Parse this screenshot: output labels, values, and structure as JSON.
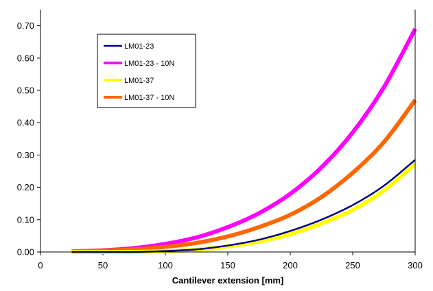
{
  "chart_data": {
    "type": "line",
    "title": "",
    "xlabel": "Cantilever extension [mm]",
    "ylabel": "",
    "xlim": [
      0,
      300
    ],
    "ylim": [
      0,
      0.75
    ],
    "x_ticks": [
      "0",
      "50",
      "100",
      "150",
      "200",
      "250",
      "300"
    ],
    "y_ticks": [
      "0.00",
      "0.10",
      "0.20",
      "0.30",
      "0.40",
      "0.50",
      "0.60",
      "0.70"
    ],
    "grid": false,
    "legend_position": "upper-left",
    "series": [
      {
        "name": "LM01-23",
        "color": "#000080",
        "weight": "thin",
        "x": [
          25,
          50,
          75,
          100,
          125,
          150,
          175,
          200,
          225,
          250,
          275,
          300
        ],
        "y": [
          0.0,
          0.0,
          0.0,
          0.003,
          0.008,
          0.02,
          0.038,
          0.065,
          0.1,
          0.145,
          0.205,
          0.285
        ]
      },
      {
        "name": "LM01-23 - 10N",
        "color": "#FF00FF",
        "weight": "thick",
        "x": [
          25,
          50,
          75,
          100,
          125,
          150,
          175,
          200,
          225,
          250,
          275,
          300
        ],
        "y": [
          0.002,
          0.005,
          0.012,
          0.025,
          0.045,
          0.077,
          0.12,
          0.18,
          0.262,
          0.37,
          0.51,
          0.69
        ]
      },
      {
        "name": "LM01-37",
        "color": "#FFFF00",
        "weight": "thick",
        "x": [
          25,
          50,
          75,
          100,
          125,
          150,
          175,
          200,
          225,
          250,
          275,
          300
        ],
        "y": [
          0.0,
          0.0,
          0.0,
          0.002,
          0.007,
          0.017,
          0.032,
          0.055,
          0.088,
          0.13,
          0.19,
          0.272
        ]
      },
      {
        "name": "LM01-37 - 10N",
        "color": "#FF6600",
        "weight": "thick",
        "x": [
          25,
          50,
          75,
          100,
          125,
          150,
          175,
          200,
          225,
          250,
          275,
          300
        ],
        "y": [
          0.002,
          0.004,
          0.008,
          0.016,
          0.028,
          0.048,
          0.077,
          0.115,
          0.17,
          0.245,
          0.34,
          0.47
        ]
      }
    ]
  }
}
